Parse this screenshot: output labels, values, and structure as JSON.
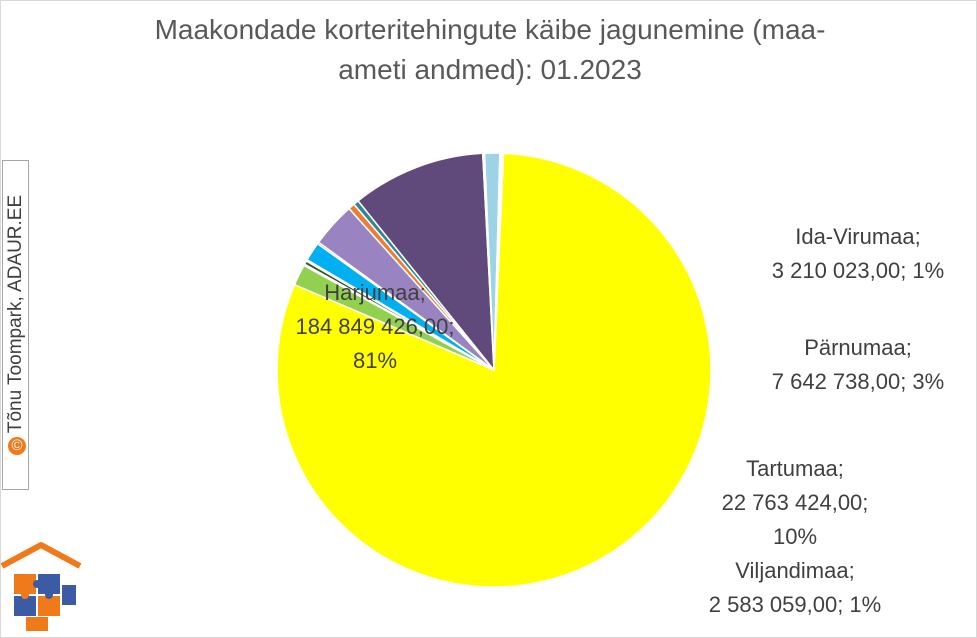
{
  "watermark": "Tõnu Toompark, ADAUR.EE",
  "watermark_symbol": "©",
  "logo": "house-puzzle-icon",
  "chart_data": {
    "type": "pie",
    "title": "Maakondade korteritehingute käibe jagunemine (maa-\nameti andmed): 01.2023",
    "slices": [
      {
        "name": "Harjumaa",
        "value": 184849426.0,
        "percent": "81%",
        "color": "#ffff00",
        "label_lines": [
          "Harjumaa;",
          "184 849 426,00;",
          "81%"
        ]
      },
      {
        "name": "",
        "value": 3600000,
        "color": "#92d050",
        "label_lines": []
      },
      {
        "name": "",
        "value": 250000,
        "color": "#ffc000",
        "label_lines": []
      },
      {
        "name": "",
        "value": 600000,
        "color": "#375623",
        "label_lines": []
      },
      {
        "name": "",
        "value": 250000,
        "color": "#d9d9d9",
        "label_lines": []
      },
      {
        "name": "Ida-Virumaa",
        "value": 3210023.0,
        "percent": "1%",
        "color": "#00b0f0",
        "label_lines": [
          "Ida-Virumaa;",
          "3 210 023,00; 1%"
        ]
      },
      {
        "name": "",
        "value": 300000,
        "color": "#7030a0",
        "label_lines": []
      },
      {
        "name": "Pärnumaa",
        "value": 7642738.0,
        "percent": "3%",
        "color": "#9983c0",
        "label_lines": [
          "Pärnumaa;",
          "7 642 738,00; 3%"
        ]
      },
      {
        "name": "",
        "value": 1100000,
        "color": "#ed7d31",
        "label_lines": []
      },
      {
        "name": "",
        "value": 900000,
        "color": "#31859c",
        "label_lines": []
      },
      {
        "name": "Tartumaa",
        "value": 22763424.0,
        "percent": "10%",
        "color": "#604a7b",
        "label_lines": [
          "Tartumaa;",
          "22 763 424,00;",
          "10%"
        ]
      },
      {
        "name": "",
        "value": 300000,
        "color": "#f2f2f2",
        "label_lines": []
      },
      {
        "name": "Viljandimaa",
        "value": 2583059.0,
        "percent": "1%",
        "color": "#9dd3e6",
        "label_lines": [
          "Viljandimaa;",
          "2 583 059,00; 1%"
        ]
      },
      {
        "name": "",
        "value": 600000,
        "color": "#ffffff",
        "label_lines": []
      }
    ],
    "legend": "none"
  }
}
